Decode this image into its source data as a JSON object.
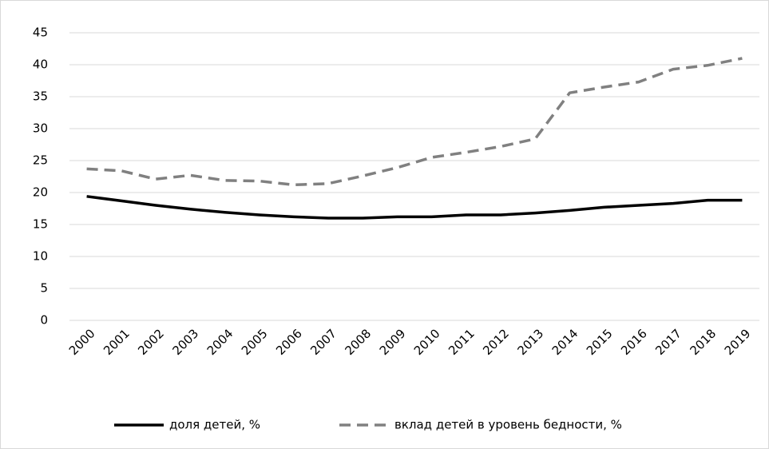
{
  "chart_data": {
    "type": "line",
    "categories": [
      "2000",
      "2001",
      "2002",
      "2003",
      "2004",
      "2005",
      "2006",
      "2007",
      "2008",
      "2009",
      "2010",
      "2011",
      "2012",
      "2013",
      "2014",
      "2015",
      "2016",
      "2017",
      "2018",
      "2019"
    ],
    "series": [
      {
        "name": "доля детей, %",
        "color": "#000000",
        "line_style": "solid",
        "values": [
          19.4,
          18.7,
          18.0,
          17.4,
          16.9,
          16.5,
          16.2,
          16.0,
          16.0,
          16.2,
          16.2,
          16.5,
          16.5,
          16.8,
          17.2,
          17.7,
          18.0,
          18.3,
          18.8,
          18.8
        ]
      },
      {
        "name": "вклад детей в уровень бедности, %",
        "color": "#808080",
        "line_style": "dashed",
        "values": [
          23.7,
          23.4,
          22.1,
          22.7,
          21.9,
          21.8,
          21.2,
          21.4,
          22.6,
          23.9,
          25.5,
          26.3,
          27.2,
          28.4,
          35.6,
          36.5,
          37.3,
          39.3,
          39.9,
          41.0
        ]
      }
    ],
    "ylim": [
      0,
      45
    ],
    "yticks": [
      0,
      5,
      10,
      15,
      20,
      25,
      30,
      35,
      40,
      45
    ],
    "grid": true,
    "legend": "bottom"
  }
}
